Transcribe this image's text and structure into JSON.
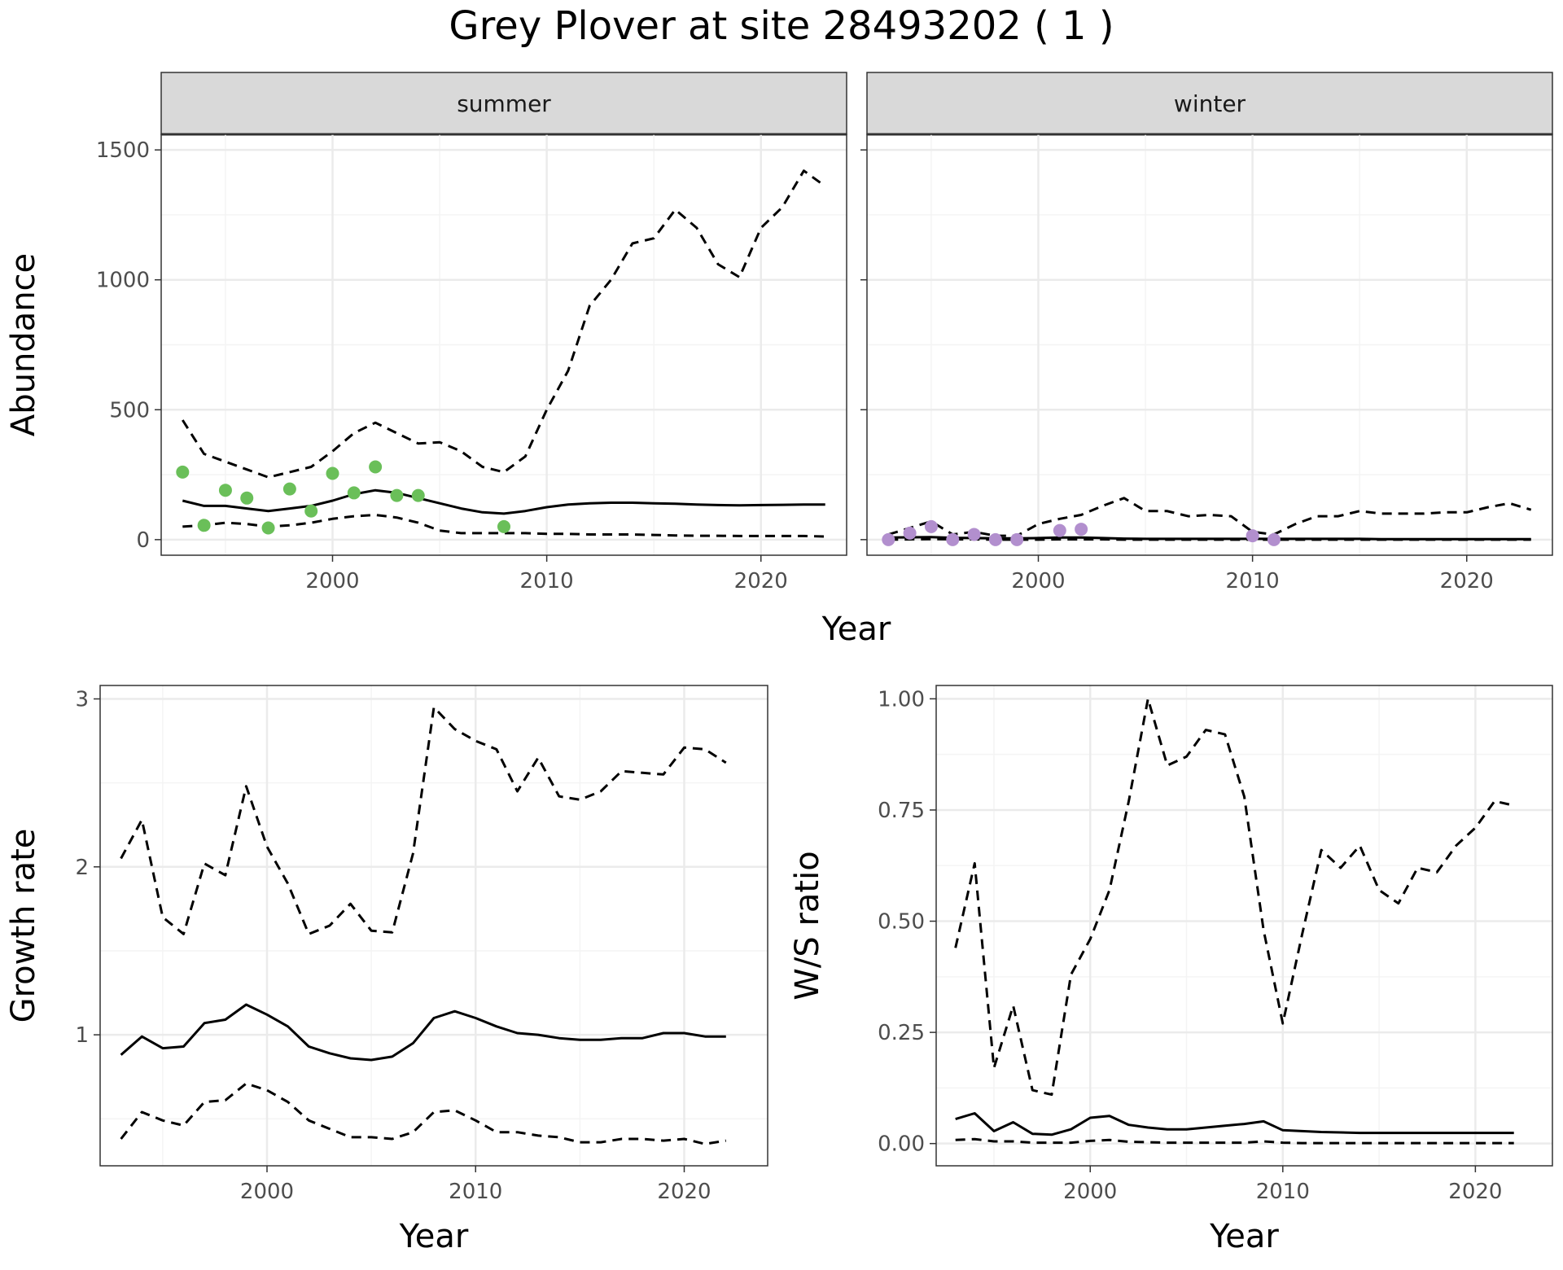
{
  "title": "Grey Plover at site 28493202 ( 1 )",
  "colors": {
    "summer_points": "#6abf59",
    "winter_points": "#b28fce",
    "lines": "#000000",
    "grid_major": "#ebebeb",
    "grid_minor": "#f4f4f4",
    "strip_fill": "#d9d9d9"
  },
  "chart_data": [
    {
      "type": "line",
      "panel": "summer",
      "strip_label": "summer",
      "ylabel": "Abundance",
      "xlabel": "Year",
      "xlim": [
        1992,
        2024
      ],
      "ylim": [
        -60,
        1560
      ],
      "x_ticks": [
        2000,
        2010,
        2020
      ],
      "y_ticks": [
        0,
        500,
        1000,
        1500
      ],
      "grid": true,
      "x": [
        1993,
        1994,
        1995,
        1996,
        1997,
        1998,
        1999,
        2000,
        2001,
        2002,
        2003,
        2004,
        2005,
        2006,
        2007,
        2008,
        2009,
        2010,
        2011,
        2012,
        2013,
        2014,
        2015,
        2016,
        2017,
        2018,
        2019,
        2020,
        2021,
        2022,
        2023
      ],
      "series": [
        {
          "role": "estimate",
          "style": "solid",
          "values": [
            150,
            130,
            130,
            120,
            110,
            120,
            130,
            150,
            175,
            190,
            180,
            160,
            140,
            120,
            105,
            100,
            110,
            125,
            135,
            140,
            142,
            142,
            140,
            138,
            135,
            133,
            132,
            133,
            134,
            135,
            135
          ]
        },
        {
          "role": "upper",
          "style": "dashed",
          "values": [
            460,
            330,
            300,
            270,
            240,
            260,
            280,
            340,
            410,
            450,
            410,
            370,
            375,
            340,
            280,
            260,
            320,
            500,
            650,
            900,
            1000,
            1140,
            1160,
            1270,
            1200,
            1060,
            1010,
            1200,
            1280,
            1420,
            1360
          ]
        },
        {
          "role": "lower",
          "style": "dashed",
          "values": [
            50,
            55,
            65,
            60,
            50,
            55,
            65,
            80,
            90,
            95,
            85,
            65,
            35,
            25,
            25,
            25,
            25,
            22,
            22,
            20,
            20,
            20,
            18,
            16,
            15,
            15,
            14,
            14,
            14,
            14,
            12
          ]
        }
      ],
      "points": [
        {
          "x": 1993,
          "y": 260
        },
        {
          "x": 1994,
          "y": 55
        },
        {
          "x": 1995,
          "y": 190
        },
        {
          "x": 1996,
          "y": 160
        },
        {
          "x": 1997,
          "y": 45
        },
        {
          "x": 1998,
          "y": 195
        },
        {
          "x": 1999,
          "y": 110
        },
        {
          "x": 2000,
          "y": 255
        },
        {
          "x": 2001,
          "y": 180
        },
        {
          "x": 2002,
          "y": 280
        },
        {
          "x": 2003,
          "y": 170
        },
        {
          "x": 2004,
          "y": 170
        },
        {
          "x": 2008,
          "y": 50
        }
      ]
    },
    {
      "type": "line",
      "panel": "winter",
      "strip_label": "winter",
      "xlim": [
        1992,
        2024
      ],
      "ylim": [
        -60,
        1560
      ],
      "x_ticks": [
        2000,
        2010,
        2020
      ],
      "y_ticks": [
        0,
        500,
        1000,
        1500
      ],
      "grid": true,
      "x": [
        1993,
        1994,
        1995,
        1996,
        1997,
        1998,
        1999,
        2000,
        2001,
        2002,
        2003,
        2004,
        2005,
        2006,
        2007,
        2008,
        2009,
        2010,
        2011,
        2012,
        2013,
        2014,
        2015,
        2016,
        2017,
        2018,
        2019,
        2020,
        2021,
        2022,
        2023
      ],
      "series": [
        {
          "role": "estimate",
          "style": "solid",
          "values": [
            8,
            9,
            10,
            7,
            6,
            5,
            5,
            6,
            8,
            8,
            6,
            4,
            3,
            3,
            3,
            3,
            3,
            3,
            3,
            3,
            3,
            3,
            3,
            2,
            2,
            2,
            2,
            2,
            2,
            2,
            2
          ]
        },
        {
          "role": "upper",
          "style": "dashed",
          "values": [
            20,
            45,
            70,
            20,
            30,
            15,
            15,
            60,
            80,
            95,
            130,
            160,
            110,
            110,
            90,
            95,
            90,
            30,
            20,
            60,
            90,
            90,
            110,
            100,
            100,
            100,
            105,
            105,
            125,
            140,
            115
          ]
        },
        {
          "role": "lower",
          "style": "dashed",
          "values": [
            0,
            1,
            2,
            1,
            1,
            0,
            0,
            0,
            1,
            1,
            1,
            0,
            0,
            0,
            0,
            0,
            0,
            0,
            0,
            0,
            0,
            0,
            0,
            0,
            0,
            0,
            0,
            0,
            0,
            0,
            0
          ]
        }
      ],
      "points": [
        {
          "x": 1993,
          "y": 0
        },
        {
          "x": 1994,
          "y": 25
        },
        {
          "x": 1995,
          "y": 50
        },
        {
          "x": 1996,
          "y": 0
        },
        {
          "x": 1997,
          "y": 20
        },
        {
          "x": 1998,
          "y": 0
        },
        {
          "x": 1999,
          "y": 0
        },
        {
          "x": 2001,
          "y": 35
        },
        {
          "x": 2002,
          "y": 40
        },
        {
          "x": 2010,
          "y": 15
        },
        {
          "x": 2011,
          "y": 0
        }
      ]
    },
    {
      "type": "line",
      "panel": "growth",
      "ylabel": "Growth rate",
      "xlabel": "Year",
      "xlim": [
        1992,
        2024
      ],
      "ylim": [
        0.22,
        3.08
      ],
      "x_ticks": [
        2000,
        2010,
        2020
      ],
      "y_ticks": [
        1,
        2,
        3
      ],
      "grid": true,
      "x": [
        1993,
        1994,
        1995,
        1996,
        1997,
        1998,
        1999,
        2000,
        2001,
        2002,
        2003,
        2004,
        2005,
        2006,
        2007,
        2008,
        2009,
        2010,
        2011,
        2012,
        2013,
        2014,
        2015,
        2016,
        2017,
        2018,
        2019,
        2020,
        2021,
        2022
      ],
      "series": [
        {
          "role": "estimate",
          "style": "solid",
          "values": [
            0.88,
            0.99,
            0.92,
            0.93,
            1.07,
            1.09,
            1.18,
            1.12,
            1.05,
            0.93,
            0.89,
            0.86,
            0.85,
            0.87,
            0.95,
            1.1,
            1.14,
            1.1,
            1.05,
            1.01,
            1.0,
            0.98,
            0.97,
            0.97,
            0.98,
            0.98,
            1.01,
            1.01,
            0.99,
            0.99
          ]
        },
        {
          "role": "upper",
          "style": "dashed",
          "values": [
            2.05,
            2.28,
            1.7,
            1.6,
            2.02,
            1.95,
            2.48,
            2.12,
            1.9,
            1.6,
            1.65,
            1.78,
            1.62,
            1.61,
            2.08,
            2.95,
            2.82,
            2.75,
            2.7,
            2.45,
            2.65,
            2.42,
            2.4,
            2.45,
            2.57,
            2.56,
            2.55,
            2.71,
            2.7,
            2.62
          ]
        },
        {
          "role": "lower",
          "style": "dashed",
          "values": [
            0.38,
            0.54,
            0.49,
            0.46,
            0.6,
            0.61,
            0.71,
            0.67,
            0.6,
            0.49,
            0.44,
            0.39,
            0.39,
            0.38,
            0.42,
            0.54,
            0.55,
            0.49,
            0.42,
            0.42,
            0.4,
            0.39,
            0.36,
            0.36,
            0.38,
            0.38,
            0.37,
            0.38,
            0.35,
            0.37
          ]
        }
      ]
    },
    {
      "type": "line",
      "panel": "ratio",
      "ylabel": "W/S ratio",
      "xlabel": "Year",
      "xlim": [
        1992,
        2024
      ],
      "ylim": [
        -0.05,
        1.03
      ],
      "x_ticks": [
        2000,
        2010,
        2020
      ],
      "y_ticks": [
        0.0,
        0.25,
        0.5,
        0.75,
        1.0
      ],
      "y_tick_labels": [
        "0.00",
        "0.25",
        "0.50",
        "0.75",
        "1.00"
      ],
      "grid": true,
      "x": [
        1993,
        1994,
        1995,
        1996,
        1997,
        1998,
        1999,
        2000,
        2001,
        2002,
        2003,
        2004,
        2005,
        2006,
        2007,
        2008,
        2009,
        2010,
        2011,
        2012,
        2013,
        2014,
        2015,
        2016,
        2017,
        2018,
        2019,
        2020,
        2021,
        2022
      ],
      "series": [
        {
          "role": "estimate",
          "style": "solid",
          "values": [
            0.055,
            0.068,
            0.028,
            0.048,
            0.022,
            0.02,
            0.032,
            0.058,
            0.062,
            0.042,
            0.036,
            0.032,
            0.032,
            0.036,
            0.04,
            0.044,
            0.05,
            0.03,
            0.028,
            0.026,
            0.025,
            0.024,
            0.024,
            0.024,
            0.024,
            0.024,
            0.024,
            0.024,
            0.024,
            0.024
          ]
        },
        {
          "role": "upper",
          "style": "dashed",
          "values": [
            0.44,
            0.63,
            0.17,
            0.31,
            0.12,
            0.11,
            0.38,
            0.46,
            0.57,
            0.77,
            1.0,
            0.85,
            0.87,
            0.93,
            0.92,
            0.78,
            0.48,
            0.27,
            0.47,
            0.66,
            0.62,
            0.67,
            0.57,
            0.54,
            0.62,
            0.61,
            0.67,
            0.71,
            0.77,
            0.76
          ]
        },
        {
          "role": "lower",
          "style": "dashed",
          "values": [
            0.008,
            0.01,
            0.005,
            0.005,
            0.002,
            0.002,
            0.002,
            0.006,
            0.008,
            0.004,
            0.003,
            0.002,
            0.002,
            0.002,
            0.002,
            0.002,
            0.005,
            0.002,
            0.001,
            0.001,
            0.001,
            0.001,
            0.001,
            0.001,
            0.001,
            0.001,
            0.001,
            0.001,
            0.001,
            0.001
          ]
        }
      ]
    }
  ]
}
